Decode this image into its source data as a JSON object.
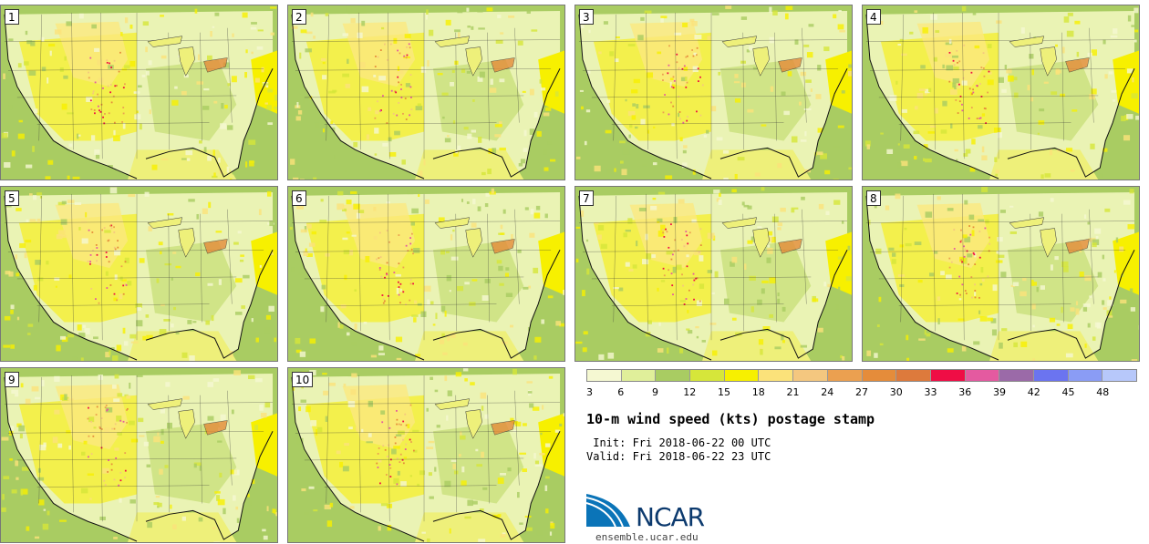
{
  "panels": [
    {
      "label": "1"
    },
    {
      "label": "2"
    },
    {
      "label": "3"
    },
    {
      "label": "4"
    },
    {
      "label": "5"
    },
    {
      "label": "6"
    },
    {
      "label": "7"
    },
    {
      "label": "8"
    },
    {
      "label": "9"
    },
    {
      "label": "10"
    }
  ],
  "colorbar": {
    "colors": [
      "#f5f8d2",
      "#e0ef9a",
      "#a9cc62",
      "#d6e63a",
      "#f7f000",
      "#fbe27a",
      "#f4c77f",
      "#eba050",
      "#e58c3a",
      "#dd7a3c",
      "#ef0d45",
      "#e45aa0",
      "#9b6aa8",
      "#6b74f0",
      "#8a9cf5",
      "#b7c8fa"
    ],
    "ticks": [
      "3",
      "6",
      "9",
      "12",
      "15",
      "18",
      "21",
      "24",
      "27",
      "30",
      "33",
      "36",
      "39",
      "42",
      "45",
      "48"
    ]
  },
  "title": "10-m wind speed (kts) postage stamp",
  "init": " Init: Fri 2018-06-22 00 UTC",
  "valid": "Valid: Fri 2018-06-22 23 UTC",
  "logo": {
    "name": "NCAR",
    "url": "ensemble.ucar.edu"
  }
}
